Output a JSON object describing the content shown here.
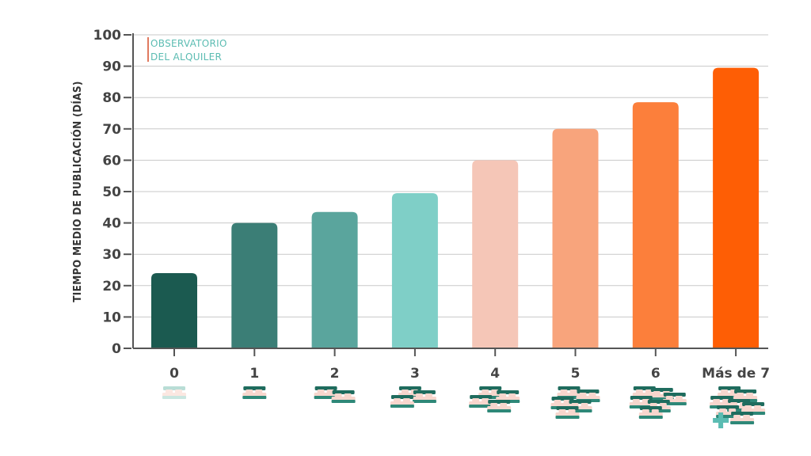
{
  "brand": {
    "line1": "OBSERVATORIO",
    "line2": "DEL ALQUILER",
    "bar_color": "#e07a5f",
    "text_color": "#5bbcb2"
  },
  "chart_data": {
    "type": "bar",
    "ylabel": "TIEMPO MEDIO  DE PUBLICACIÓN (DÍAS)",
    "xlabel": "",
    "ylim": [
      0,
      100
    ],
    "yticks": [
      0,
      10,
      20,
      30,
      40,
      50,
      60,
      70,
      80,
      90,
      100
    ],
    "grid": true,
    "categories": [
      "0",
      "1",
      "2",
      "3",
      "4",
      "5",
      "6",
      "Más de 7"
    ],
    "values": [
      24,
      40,
      43.5,
      49.5,
      60,
      70,
      78.5,
      89.5
    ],
    "bar_colors": [
      "#1b5a50",
      "#3b7e76",
      "#5aa59d",
      "#7fcfc7",
      "#f5c6b7",
      "#f8a47c",
      "#fc7f3b",
      "#fe5e05"
    ],
    "bed_icon_counts": [
      1,
      1,
      2,
      3,
      4,
      5,
      6,
      7
    ],
    "bed_icon_colors": [
      "#f7d6cd",
      "#1f6c5e"
    ]
  }
}
